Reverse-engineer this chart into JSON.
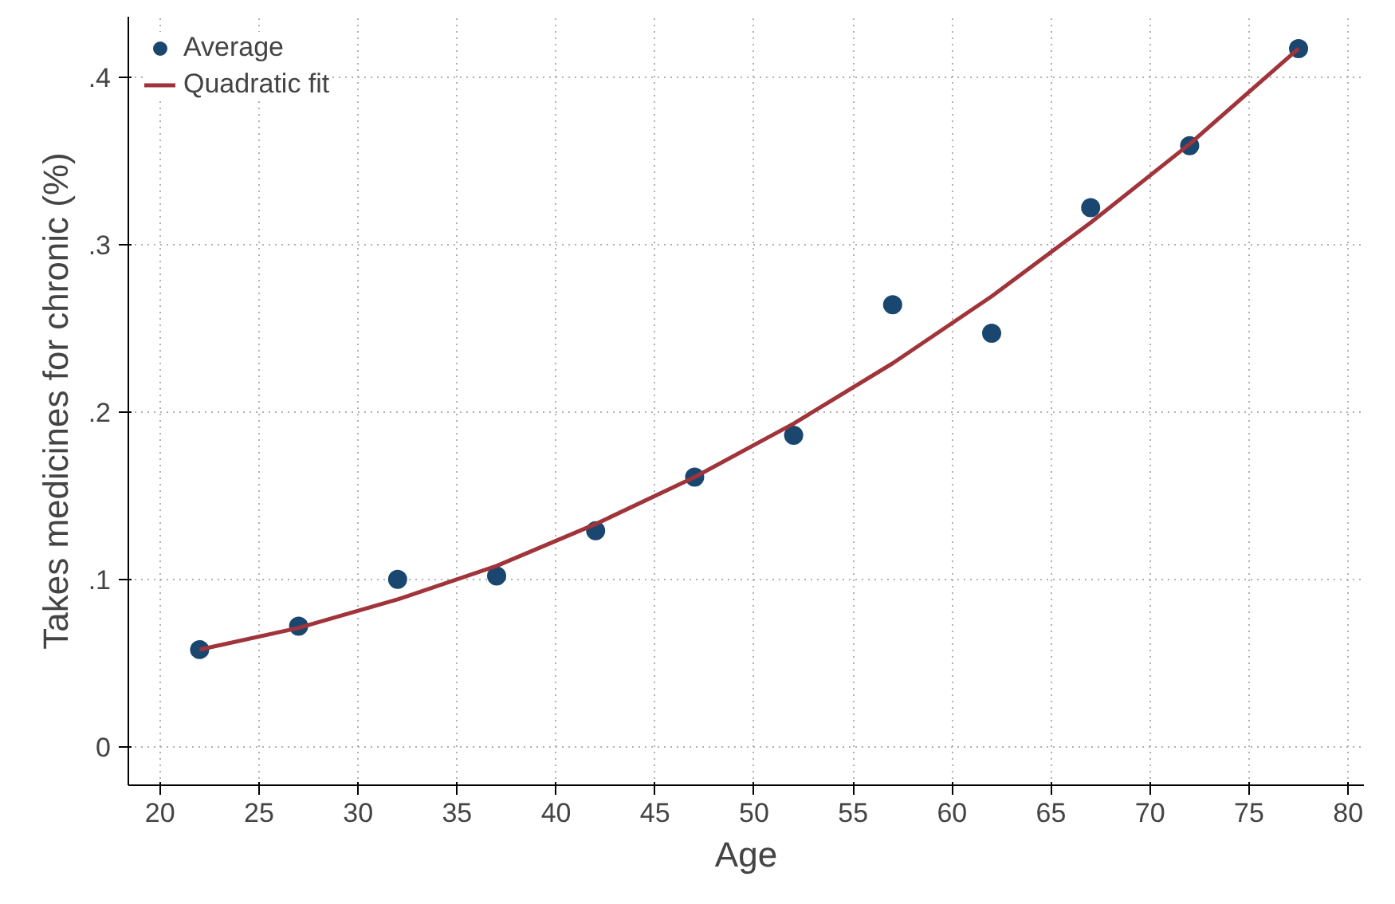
{
  "chart_data": {
    "type": "scatter",
    "xlabel": "Age",
    "ylabel": "Takes medicines for chronic (%)",
    "xlim": [
      18.4,
      80.8
    ],
    "ylim": [
      -0.023,
      0.436
    ],
    "xticks": [
      20,
      25,
      30,
      35,
      40,
      45,
      50,
      55,
      60,
      65,
      70,
      75,
      80
    ],
    "yticks": [
      0,
      {
        "value": 0.1,
        "label": ".1"
      },
      {
        "value": 0.2,
        "label": ".2"
      },
      {
        "value": 0.3,
        "label": ".3"
      },
      {
        "value": 0.4,
        "label": ".4"
      }
    ],
    "grid": true,
    "legend": "top left",
    "series": [
      {
        "name": "Average",
        "marker": "circle",
        "color": "#1a476f",
        "x": [
          22,
          27,
          32,
          37,
          42,
          47,
          52,
          57,
          62,
          67,
          72,
          77.5
        ],
        "values": [
          0.058,
          0.072,
          0.1,
          0.102,
          0.129,
          0.161,
          0.186,
          0.264,
          0.247,
          0.322,
          0.359,
          0.417
        ]
      },
      {
        "name": "Quadratic fit",
        "type": "line",
        "line_style": "solid",
        "color": "#a0343a",
        "x": [
          22,
          27,
          32,
          37,
          42,
          47,
          52,
          57,
          62,
          67,
          72,
          77.5
        ],
        "values": [
          0.058,
          0.071,
          0.088,
          0.108,
          0.133,
          0.161,
          0.193,
          0.229,
          0.269,
          0.313,
          0.36,
          0.417
        ]
      }
    ]
  }
}
